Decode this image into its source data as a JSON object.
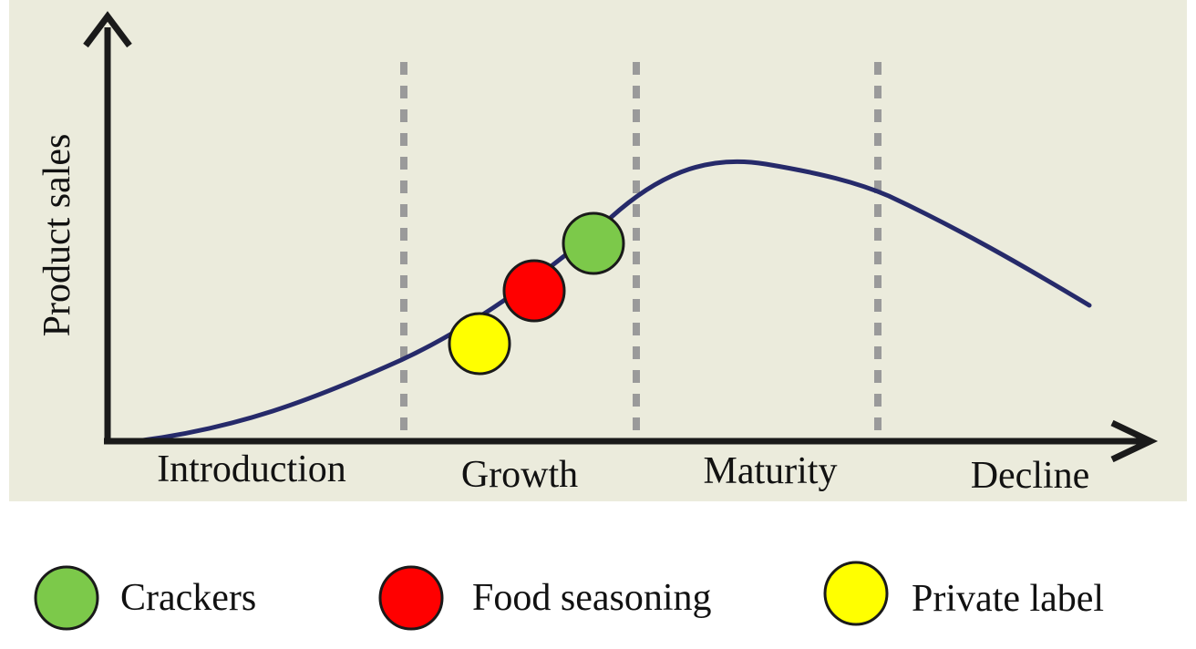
{
  "diagram": {
    "y_axis_label": "Product sales",
    "background_color": "#ebebdc",
    "curve_color": "#262a6a",
    "stages": [
      {
        "id": "introduction",
        "label": "Introduction"
      },
      {
        "id": "growth",
        "label": "Growth"
      },
      {
        "id": "maturity",
        "label": "Maturity"
      },
      {
        "id": "decline",
        "label": "Decline"
      }
    ],
    "markers": [
      {
        "id": "private-label",
        "stage": "growth",
        "color": "#ffff00"
      },
      {
        "id": "food-seasoning",
        "stage": "growth",
        "color": "#ff0000"
      },
      {
        "id": "crackers",
        "stage": "growth",
        "color": "#7cc94a"
      }
    ]
  },
  "legend": {
    "items": [
      {
        "id": "crackers",
        "label": "Crackers",
        "color": "#7cc94a"
      },
      {
        "id": "food-seasoning",
        "label": "Food seasoning",
        "color": "#ff0000"
      },
      {
        "id": "private-label",
        "label": "Private label",
        "color": "#ffff00"
      }
    ]
  }
}
